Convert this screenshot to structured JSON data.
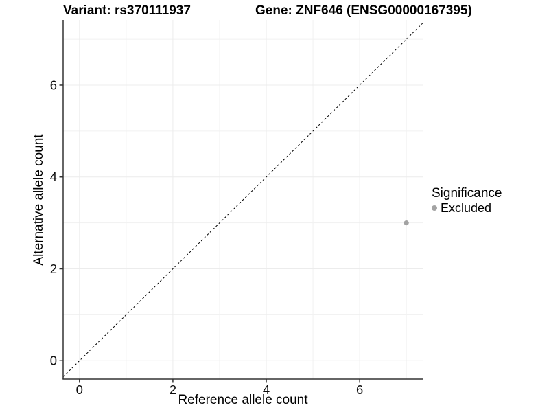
{
  "chart_data": {
    "type": "scatter",
    "titles": {
      "left": "Variant: rs370111937",
      "right": "Gene: ZNF646 (ENSG00000167395)"
    },
    "xlabel": "Reference allele count",
    "ylabel": "Alternative allele count",
    "xlim": [
      -0.35,
      7.35
    ],
    "ylim": [
      -0.4,
      7.42
    ],
    "xticks": [
      0,
      2,
      4,
      6
    ],
    "yticks": [
      0,
      2,
      4,
      6
    ],
    "xgrid_minor": [
      1,
      3,
      5,
      7
    ],
    "ygrid_minor": [
      1,
      3,
      5,
      7
    ],
    "identity_line": {
      "show": true,
      "style": "dashed",
      "color": "#000000"
    },
    "series": [
      {
        "name": "Excluded",
        "color": "#a3a3a3",
        "points": [
          {
            "x": 7,
            "y": 3
          }
        ]
      }
    ],
    "legend": {
      "title": "Significance",
      "position": "right",
      "items": [
        {
          "label": "Excluded",
          "color": "#a3a3a3"
        }
      ]
    },
    "colors": {
      "grid_major": "#ececec",
      "grid_minor": "#f1f1f1",
      "axis_line": "#333333",
      "tick_text": "#0d0d0d",
      "background": "#ffffff"
    }
  }
}
